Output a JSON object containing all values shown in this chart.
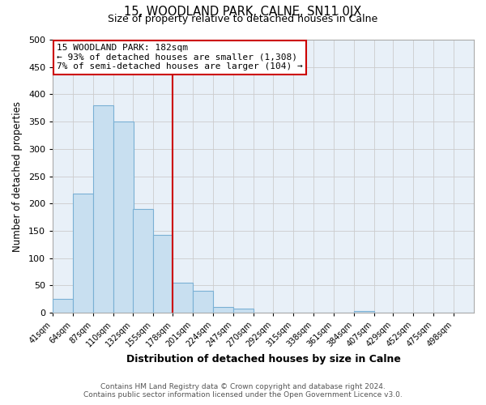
{
  "title": "15, WOODLAND PARK, CALNE, SN11 0JX",
  "subtitle": "Size of property relative to detached houses in Calne",
  "xlabel": "Distribution of detached houses by size in Calne",
  "ylabel": "Number of detached properties",
  "bin_labels": [
    "41sqm",
    "64sqm",
    "87sqm",
    "110sqm",
    "132sqm",
    "155sqm",
    "178sqm",
    "201sqm",
    "224sqm",
    "247sqm",
    "270sqm",
    "292sqm",
    "315sqm",
    "338sqm",
    "361sqm",
    "384sqm",
    "407sqm",
    "429sqm",
    "452sqm",
    "475sqm",
    "498sqm"
  ],
  "bin_edges": [
    41,
    64,
    87,
    110,
    132,
    155,
    178,
    201,
    224,
    247,
    270,
    292,
    315,
    338,
    361,
    384,
    407,
    429,
    452,
    475,
    498
  ],
  "bar_values": [
    25,
    218,
    380,
    350,
    190,
    143,
    55,
    40,
    11,
    8,
    0,
    0,
    0,
    0,
    0,
    3,
    0,
    0,
    0,
    0,
    0
  ],
  "bar_color": "#c8dff0",
  "bar_edge_color": "#7ab0d4",
  "vline_x": 178,
  "vline_color": "#cc0000",
  "ylim": [
    0,
    500
  ],
  "yticks": [
    0,
    50,
    100,
    150,
    200,
    250,
    300,
    350,
    400,
    450,
    500
  ],
  "annotation_line1": "15 WOODLAND PARK: 182sqm",
  "annotation_line2": "← 93% of detached houses are smaller (1,308)",
  "annotation_line3": "7% of semi-detached houses are larger (104) →",
  "annotation_box_color": "#ffffff",
  "annotation_box_edge": "#cc0000",
  "footer_line1": "Contains HM Land Registry data © Crown copyright and database right 2024.",
  "footer_line2": "Contains public sector information licensed under the Open Government Licence v3.0.",
  "background_color": "#ffffff",
  "grid_color": "#cccccc",
  "plot_bg_color": "#e8f0f8"
}
